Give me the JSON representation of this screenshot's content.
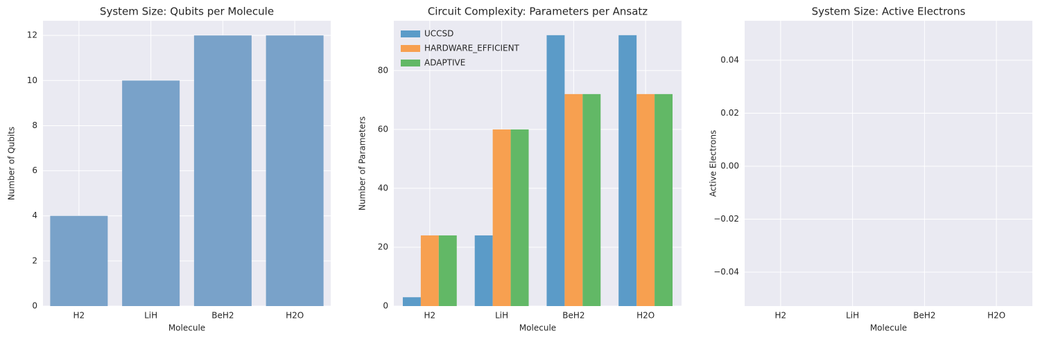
{
  "chart_data": [
    {
      "type": "bar",
      "title": "System Size: Qubits per Molecule",
      "xlabel": "Molecule",
      "ylabel": "Number of Qubits",
      "categories": [
        "H2",
        "LiH",
        "BeH2",
        "H2O"
      ],
      "values": [
        4,
        10,
        12,
        12
      ],
      "color": "#79a2c9",
      "ylim": [
        0,
        12.65
      ],
      "yticks": [
        0,
        2,
        4,
        6,
        8,
        10,
        12
      ],
      "grid": true
    },
    {
      "type": "grouped_bar",
      "title": "Circuit Complexity: Parameters per Ansatz",
      "xlabel": "Molecule",
      "ylabel": "Number of Parameters",
      "categories": [
        "H2",
        "LiH",
        "BeH2",
        "H2O"
      ],
      "series": [
        {
          "name": "UCCSD",
          "color": "#5b9bc8",
          "values": [
            3,
            24,
            92,
            92
          ]
        },
        {
          "name": "HARDWARE_EFFICIENT",
          "color": "#f7a050",
          "values": [
            24,
            60,
            72,
            72
          ]
        },
        {
          "name": "ADAPTIVE",
          "color": "#62b866",
          "values": [
            24,
            60,
            72,
            72
          ]
        }
      ],
      "ylim": [
        0,
        96.9
      ],
      "yticks": [
        0,
        20,
        40,
        60,
        80
      ],
      "grid": true,
      "legend": "upper left"
    },
    {
      "type": "bar",
      "title": "System Size: Active Electrons",
      "xlabel": "Molecule",
      "ylabel": "Active Electrons",
      "categories": [
        "H2",
        "LiH",
        "BeH2",
        "H2O"
      ],
      "ylim": [
        -0.0528,
        0.0549
      ],
      "yticks": [
        {
          "value": -0.04,
          "label": "−0.04"
        },
        {
          "value": -0.02,
          "label": "−0.02"
        },
        {
          "value": 0,
          "label": "0.00"
        },
        0.02,
        0.04
      ],
      "grid": true
    }
  ]
}
